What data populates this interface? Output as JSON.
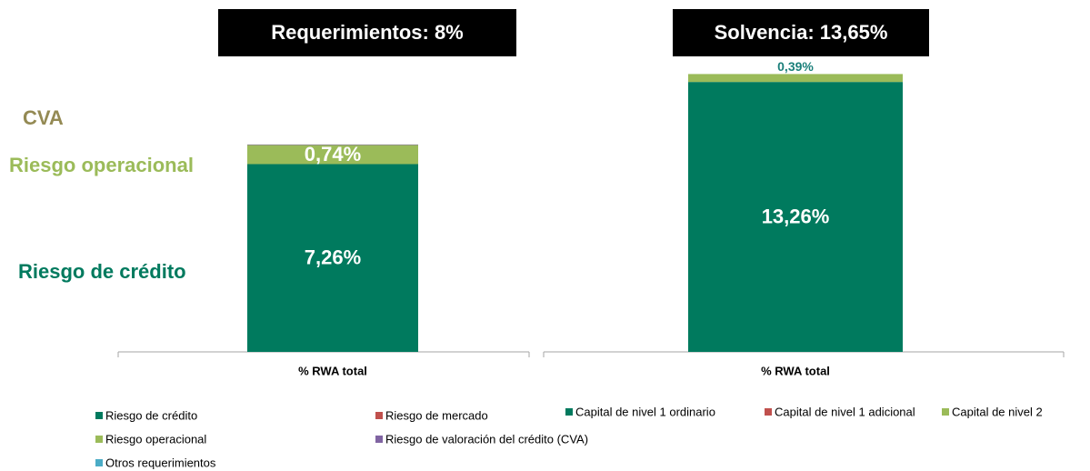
{
  "chart_data": [
    {
      "type": "stacked_bar",
      "title": "Requerimientos: 8%",
      "categories": [
        "% RWA total"
      ],
      "ylim": [
        0,
        12.2
      ],
      "series": [
        {
          "name": "Riesgo de crédito",
          "color": "#007a5e",
          "values": [
            7.26
          ],
          "value_labels": [
            "7,26%"
          ]
        },
        {
          "name": "Riesgo de mercado",
          "color": "#c0504d",
          "values": [
            0
          ]
        },
        {
          "name": "Riesgo operacional",
          "color": "#9bbb59",
          "values": [
            0.74
          ],
          "value_labels": [
            "0,74%"
          ]
        },
        {
          "name": "Riesgo de valoración del crédito (CVA)",
          "color": "#8064a2",
          "values": [
            0.02
          ]
        },
        {
          "name": "Otros requerimientos",
          "color": "#4bacc6",
          "values": [
            0
          ]
        }
      ],
      "annotations": [
        {
          "text": "CVA",
          "color": "#948a54"
        },
        {
          "text": "Riesgo operacional",
          "color": "#9bbb59"
        },
        {
          "text": "Riesgo de crédito",
          "color": "#007a5e"
        }
      ]
    },
    {
      "type": "stacked_bar",
      "title": "Solvencia: 13,65%",
      "categories": [
        "% RWA total"
      ],
      "ylim": [
        0,
        15.5
      ],
      "series": [
        {
          "name": "Capital de nivel 1 ordinario",
          "color": "#007a5e",
          "values": [
            13.26
          ],
          "value_labels": [
            "13,26%"
          ]
        },
        {
          "name": "Capital de nivel 1 adicional",
          "color": "#c0504d",
          "values": [
            0
          ]
        },
        {
          "name": "Capital de nivel 2",
          "color": "#9bbb59",
          "values": [
            0.39
          ],
          "value_labels": [
            "0,39%"
          ]
        }
      ]
    }
  ]
}
